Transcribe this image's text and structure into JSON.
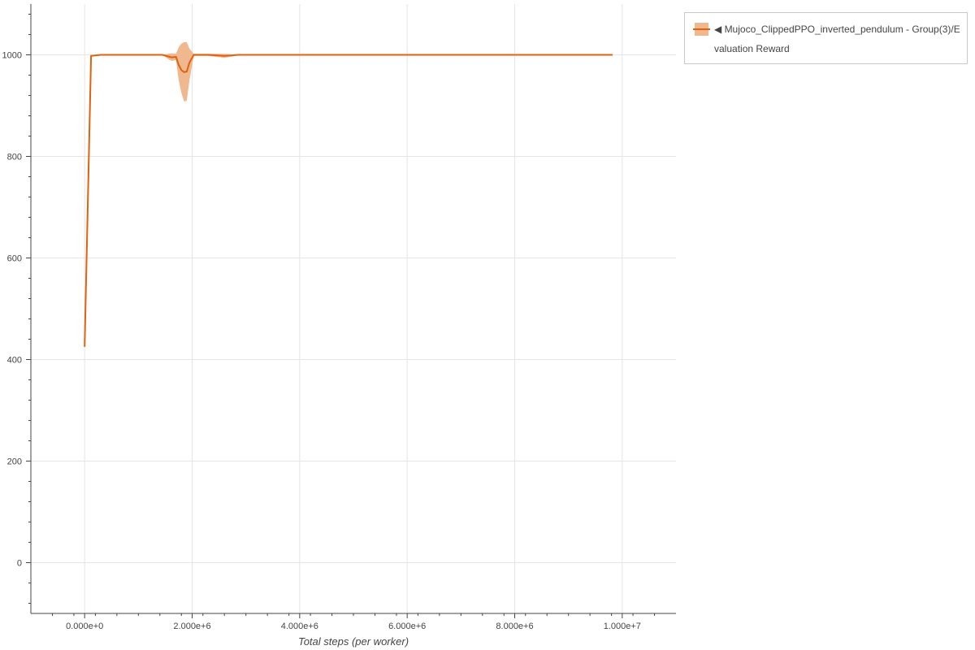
{
  "chart_data": {
    "type": "line",
    "xlabel": "Total steps (per worker)",
    "ylabel": "",
    "xlim": [
      -1000000,
      11000000
    ],
    "ylim": [
      -100,
      1100
    ],
    "xticks": [
      0,
      2000000,
      4000000,
      6000000,
      8000000,
      10000000
    ],
    "xtick_labels": [
      "0.000e+0",
      "2.000e+6",
      "4.000e+6",
      "6.000e+6",
      "8.000e+6",
      "1.000e+7"
    ],
    "yticks": [
      0,
      200,
      400,
      600,
      800,
      1000
    ],
    "ytick_labels": [
      "0",
      "200",
      "400",
      "600",
      "800",
      "1000"
    ],
    "grid": true,
    "legend_position": "outside-top-right",
    "series": [
      {
        "name": "◀ Mujoco_ClippedPPO_inverted_pendulum - Group(3)/Evaluation Reward",
        "color": "#e0620f",
        "band_color": "#f0b88e",
        "points_x_mean_min_max": [
          [
            0,
            425,
            425,
            425
          ],
          [
            120000,
            998,
            998,
            998
          ],
          [
            300000,
            1000,
            1000,
            1000
          ],
          [
            600000,
            1000,
            1000,
            1000
          ],
          [
            1450000,
            1000,
            1000,
            1000
          ],
          [
            1550000,
            997,
            992,
            1002
          ],
          [
            1620000,
            995,
            988,
            1003
          ],
          [
            1700000,
            996,
            990,
            1002
          ],
          [
            1750000,
            980,
            950,
            1015
          ],
          [
            1800000,
            970,
            925,
            1022
          ],
          [
            1850000,
            966,
            908,
            1025
          ],
          [
            1900000,
            967,
            910,
            1025
          ],
          [
            1950000,
            985,
            950,
            1012
          ],
          [
            2030000,
            1000,
            998,
            1002
          ],
          [
            2300000,
            1000,
            998,
            1002
          ],
          [
            2600000,
            998,
            994,
            1002
          ],
          [
            2750000,
            999,
            997,
            1001
          ],
          [
            2850000,
            1000,
            1000,
            1000
          ],
          [
            5000000,
            1000,
            1000,
            1000
          ],
          [
            9820000,
            1000,
            1000,
            1000
          ]
        ]
      }
    ]
  }
}
